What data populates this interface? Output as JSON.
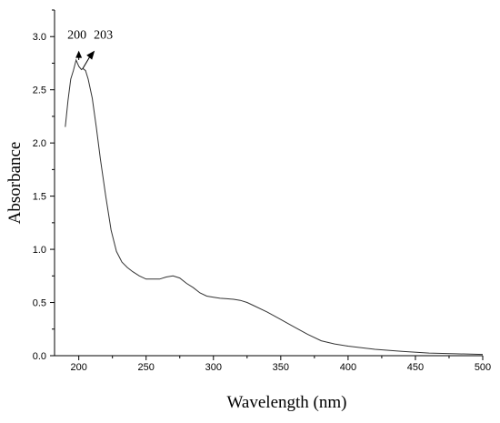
{
  "chart_data": {
    "type": "line",
    "xlabel": "Wavelength (nm)",
    "ylabel": "Absorbance",
    "xlim": [
      182,
      500
    ],
    "ylim": [
      0,
      3.25
    ],
    "x_ticks": [
      200,
      250,
      300,
      350,
      400,
      450,
      500
    ],
    "x_tick_labels": [
      "200",
      "250",
      "300",
      "350",
      "400",
      "450",
      "500"
    ],
    "y_ticks": [
      0.0,
      0.5,
      1.0,
      1.5,
      2.0,
      2.5,
      3.0
    ],
    "y_tick_labels": [
      "0.0",
      "0.5",
      "1.0",
      "1.5",
      "2.0",
      "2.5",
      "3.0"
    ],
    "grid": false,
    "line_color": "#333333",
    "series": [
      {
        "x": [
          190,
          192,
          194,
          196,
          198,
          200,
          202,
          203,
          205,
          207,
          210,
          213,
          216,
          220,
          224,
          228,
          232,
          236,
          240,
          245,
          250,
          255,
          260,
          265,
          270,
          275,
          280,
          285,
          290,
          295,
          300,
          305,
          310,
          315,
          320,
          325,
          330,
          340,
          350,
          360,
          370,
          380,
          390,
          400,
          420,
          440,
          460,
          480,
          500
        ],
        "y": [
          2.15,
          2.4,
          2.6,
          2.68,
          2.78,
          2.72,
          2.69,
          2.7,
          2.68,
          2.6,
          2.42,
          2.15,
          1.85,
          1.5,
          1.18,
          0.98,
          0.88,
          0.83,
          0.79,
          0.75,
          0.72,
          0.72,
          0.72,
          0.74,
          0.75,
          0.73,
          0.68,
          0.64,
          0.59,
          0.56,
          0.55,
          0.54,
          0.535,
          0.53,
          0.52,
          0.5,
          0.47,
          0.41,
          0.34,
          0.27,
          0.2,
          0.14,
          0.11,
          0.09,
          0.06,
          0.04,
          0.025,
          0.018,
          0.012
        ]
      }
    ],
    "annotations": [
      {
        "text": "200",
        "x": 200,
        "y": 2.78
      },
      {
        "text": "203",
        "x": 203,
        "y": 2.7
      }
    ]
  }
}
